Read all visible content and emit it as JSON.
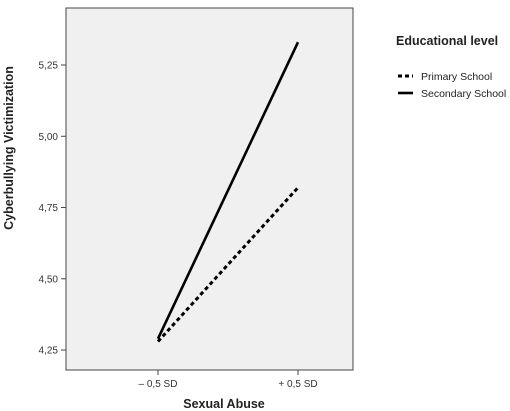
{
  "chart_data": {
    "type": "line",
    "xlabel": "Sexual Abuse",
    "ylabel": "Cyberbullying Victimization",
    "categories": [
      "– 0,5 SD",
      "+ 0,5 SD"
    ],
    "yticks": [
      "4,25",
      "4,50",
      "4,75",
      "5,00",
      "5,25"
    ],
    "ytick_values": [
      4.25,
      4.5,
      4.75,
      5.0,
      5.25
    ],
    "ylim": [
      4.18,
      5.45
    ],
    "grid": false,
    "legend_placement": "right",
    "legend_title": "Educational level",
    "series": [
      {
        "name": "Primary School",
        "style": "dashed",
        "color": "#000000",
        "values": [
          4.28,
          4.82
        ]
      },
      {
        "name": "Secondary School",
        "style": "solid",
        "color": "#000000",
        "values": [
          4.29,
          5.33
        ]
      }
    ],
    "plot_background": "#f0f0f0"
  }
}
